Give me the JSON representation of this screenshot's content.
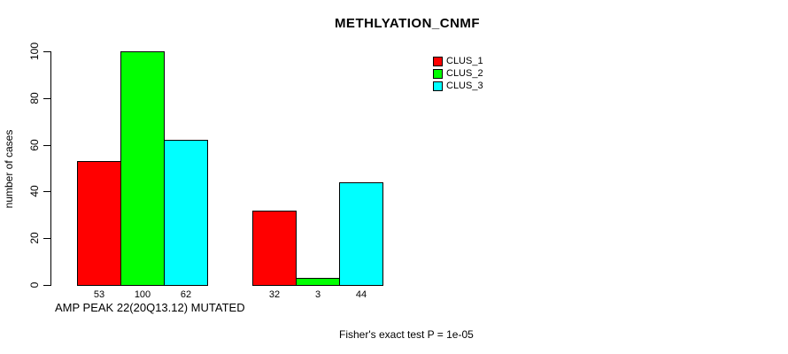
{
  "chart_data": {
    "type": "bar",
    "title": "METHLYATION_CNMF",
    "ylabel": "number of cases",
    "xlabel": "AMP PEAK 22(20Q13.12) MUTATED",
    "footnote": "Fisher's exact test P = 1e-05",
    "ylim": [
      0,
      100
    ],
    "yticks": [
      0,
      20,
      40,
      60,
      80,
      100
    ],
    "grid": false,
    "legend_position": "top-right",
    "bar_value_labels_shown": true,
    "series": [
      {
        "name": "CLUS_1",
        "color": "#FF0000",
        "values": [
          53,
          32
        ]
      },
      {
        "name": "CLUS_2",
        "color": "#00FF00",
        "values": [
          100,
          3
        ]
      },
      {
        "name": "CLUS_3",
        "color": "#00FFFF",
        "values": [
          62,
          44
        ]
      }
    ]
  }
}
